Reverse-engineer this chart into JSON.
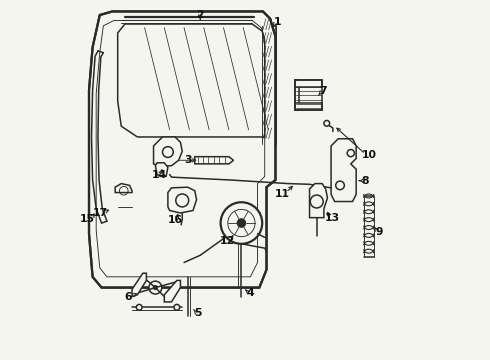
{
  "background_color": "#f5f5f0",
  "line_color": "#2a2a2a",
  "label_color": "#111111",
  "figsize": [
    4.9,
    3.6
  ],
  "dpi": 100,
  "lw_main": 1.1,
  "lw_thin": 0.65,
  "lw_thick": 1.6,
  "label_fontsize": 7.8,
  "components": {
    "door_frame": true,
    "window_glass": true,
    "mechanisms": true
  }
}
